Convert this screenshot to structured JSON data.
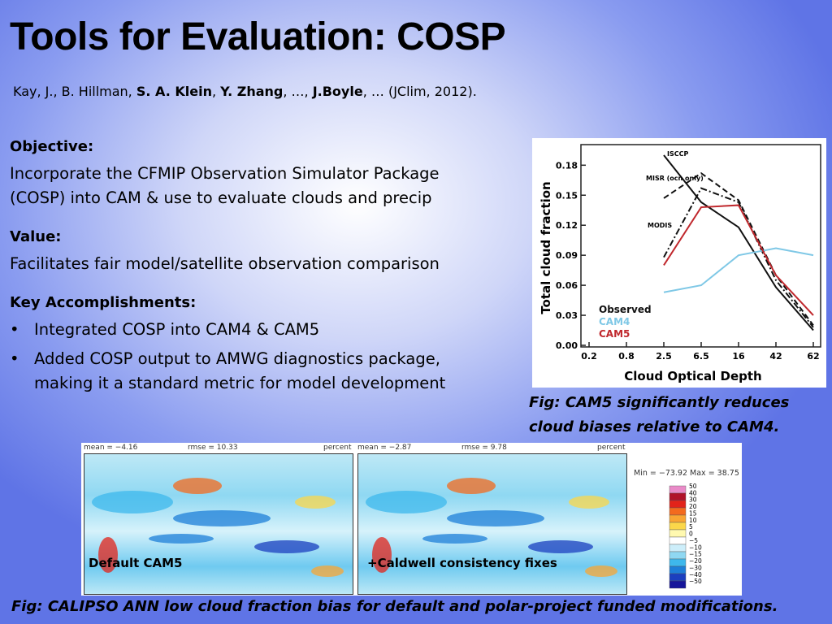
{
  "title": "Tools for Evaluation: COSP",
  "citation": [
    {
      "text": "Kay, J., B. Hillman, ",
      "bold": false
    },
    {
      "text": "S. A. Klein",
      "bold": true
    },
    {
      "text": ", ",
      "bold": false
    },
    {
      "text": "Y. Zhang",
      "bold": true
    },
    {
      "text": ", …, ",
      "bold": false
    },
    {
      "text": "J.Boyle",
      "bold": true
    },
    {
      "text": ", … (JClim, 2012).",
      "bold": false
    }
  ],
  "sections": [
    {
      "heading": "Objective:",
      "bullets": false,
      "items": [
        "Incorporate the CFMIP Observation Simulator Package (COSP) into CAM & use to evaluate clouds and precip"
      ]
    },
    {
      "heading": "Value:",
      "bullets": false,
      "items": [
        "Facilitates fair model/satellite observation comparison"
      ]
    },
    {
      "heading": "Key Accomplishments:",
      "bullets": true,
      "items": [
        "Integrated COSP into CAM4 & CAM5",
        "Added COSP output to AMWG diagnostics package, making it a standard metric for model development"
      ]
    }
  ],
  "chart_data": {
    "type": "line",
    "y_label": "Total cloud fraction",
    "x_label": "Cloud Optical Depth",
    "categories": [
      "0.2",
      "0.8",
      "2.5",
      "6.5",
      "16",
      "42",
      "62"
    ],
    "ylim": [
      0,
      0.19
    ],
    "yticks": [
      {
        "value": 0,
        "label": "0.00"
      },
      0.03,
      0.06,
      0.09,
      0.12,
      0.15,
      0.18
    ],
    "series": [
      {
        "name": "ISCCP",
        "color": "#111111",
        "dash": "solid",
        "values": [
          null,
          null,
          0.19,
          0.143,
          0.118,
          0.058,
          0.015
        ]
      },
      {
        "name": "MISR (ocn only)",
        "color": "#111111",
        "dash": "dashed",
        "values": [
          null,
          null,
          0.147,
          0.172,
          0.145,
          0.07,
          0.02
        ]
      },
      {
        "name": "MODIS",
        "color": "#111111",
        "dash": "dashdot",
        "values": [
          null,
          null,
          0.088,
          0.157,
          0.143,
          0.065,
          0.018
        ]
      },
      {
        "name": "CAM4",
        "color": "#7fc8e6",
        "dash": "solid",
        "values": [
          null,
          null,
          0.053,
          0.06,
          0.09,
          0.097,
          0.09
        ]
      },
      {
        "name": "CAM5",
        "color": "#c0282d",
        "dash": "solid",
        "values": [
          null,
          null,
          0.08,
          0.138,
          0.14,
          0.07,
          0.03
        ]
      }
    ],
    "legend": [
      {
        "name": "Observed",
        "color": "#111111"
      },
      {
        "name": "CAM4",
        "color": "#7fc8e6"
      },
      {
        "name": "CAM5",
        "color": "#c0282d"
      }
    ]
  },
  "figure_caption": "Fig: CAM5 significantly reduces cloud biases relative to CAM4.",
  "maps": [
    {
      "mean": "mean = −4.16",
      "rmse": "rmse = 10.33",
      "unit": "percent",
      "label": "Default CAM5"
    },
    {
      "mean": "mean = −2.87",
      "rmse": "rmse = 9.78",
      "unit": "percent",
      "label": "+Caldwell consistency fixes"
    }
  ],
  "range_text": "Min = −73.92 Max = 38.75",
  "colorbar": {
    "ticks": [
      50,
      40,
      30,
      20,
      15,
      10,
      5,
      0,
      {
        "value": -5,
        "label": "−5"
      },
      {
        "value": -10,
        "label": "−10"
      },
      {
        "value": -15,
        "label": "−15"
      },
      {
        "value": -20,
        "label": "−20"
      },
      {
        "value": -30,
        "label": "−30"
      },
      {
        "value": -40,
        "label": "−40"
      },
      {
        "value": -50,
        "label": "−50"
      }
    ],
    "colors": [
      "#e98ac8",
      "#b0122a",
      "#e2231a",
      "#f36a1e",
      "#f9a533",
      "#fbd74a",
      "#fff9b0",
      "#ffffff",
      "#cdeefa",
      "#8fd8f2",
      "#3eb8ec",
      "#1e7fd8",
      "#1b3fbf",
      "#16169a"
    ]
  },
  "bottom_caption": "Fig: CALIPSO ANN low cloud fraction bias for default and polar-project funded modifications."
}
